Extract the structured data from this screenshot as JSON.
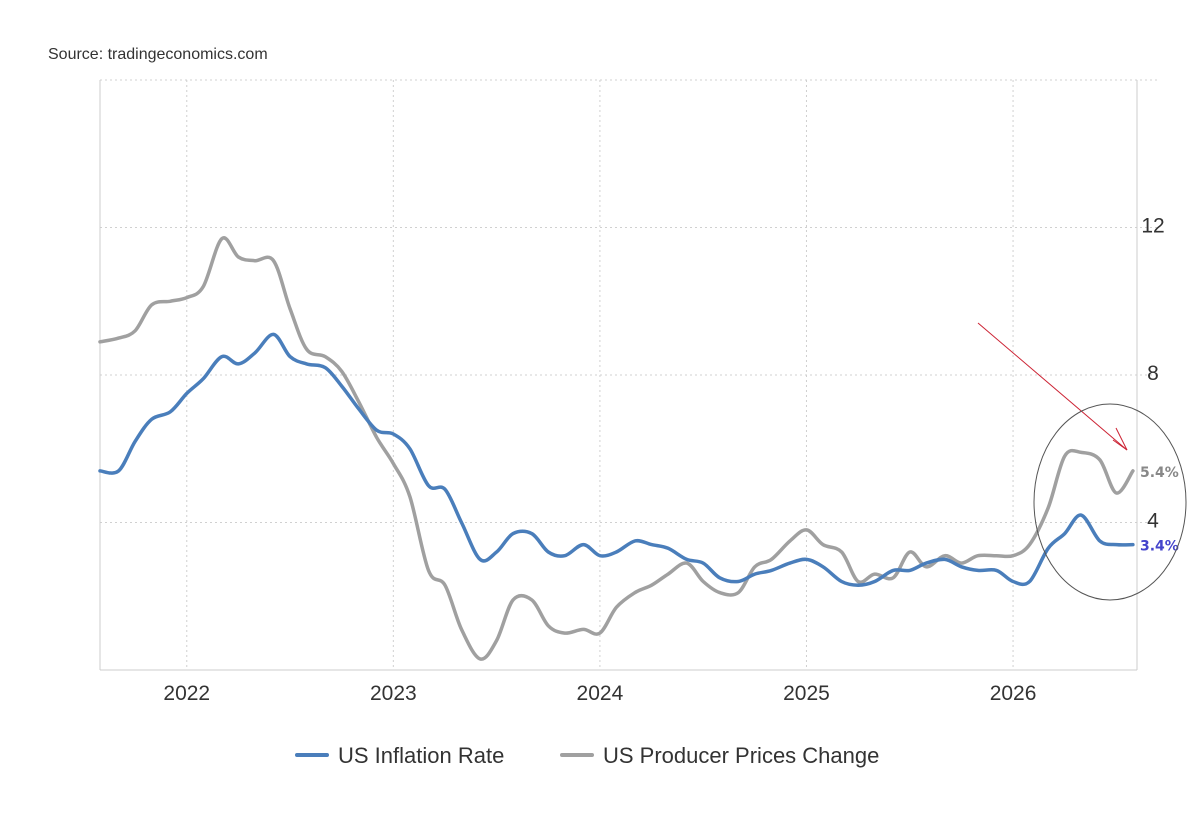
{
  "source": "Source: tradingeconomics.com",
  "colors": {
    "inflation": "#4a7ebb",
    "ppi": "#a0a0a0",
    "inflation_label": "#4444cc",
    "ppi_label": "#888888",
    "annotation": "#cc2233",
    "ellipse": "#555555"
  },
  "chart_data": {
    "type": "line",
    "x_ticks": [
      "2022",
      "2023",
      "2024",
      "2025",
      "2026"
    ],
    "x_tick_values": [
      2022.0,
      2023.0,
      2024.0,
      2025.0,
      2026.0
    ],
    "y_ticks": [
      "4",
      "8",
      "12"
    ],
    "y_tick_values": [
      4,
      8,
      12
    ],
    "xlim": [
      2021.58,
      2026.6
    ],
    "ylim": [
      0,
      16
    ],
    "y_axis_side": "right",
    "grid": true,
    "legend_position": "bottom-center",
    "series": [
      {
        "name": "US Inflation Rate",
        "color": "#4a7ebb",
        "end_label": "3.4%",
        "points": [
          [
            2021.58,
            5.4
          ],
          [
            2021.67,
            5.4
          ],
          [
            2021.75,
            6.2
          ],
          [
            2021.83,
            6.8
          ],
          [
            2021.92,
            7.0
          ],
          [
            2022.0,
            7.5
          ],
          [
            2022.08,
            7.9
          ],
          [
            2022.17,
            8.5
          ],
          [
            2022.25,
            8.3
          ],
          [
            2022.33,
            8.6
          ],
          [
            2022.42,
            9.1
          ],
          [
            2022.5,
            8.5
          ],
          [
            2022.58,
            8.3
          ],
          [
            2022.67,
            8.2
          ],
          [
            2022.75,
            7.7
          ],
          [
            2022.83,
            7.1
          ],
          [
            2022.92,
            6.5
          ],
          [
            2023.0,
            6.4
          ],
          [
            2023.08,
            6.0
          ],
          [
            2023.17,
            5.0
          ],
          [
            2023.25,
            4.9
          ],
          [
            2023.33,
            4.0
          ],
          [
            2023.42,
            3.0
          ],
          [
            2023.5,
            3.2
          ],
          [
            2023.58,
            3.7
          ],
          [
            2023.67,
            3.7
          ],
          [
            2023.75,
            3.2
          ],
          [
            2023.83,
            3.1
          ],
          [
            2023.92,
            3.4
          ],
          [
            2024.0,
            3.1
          ],
          [
            2024.08,
            3.2
          ],
          [
            2024.17,
            3.5
          ],
          [
            2024.25,
            3.4
          ],
          [
            2024.33,
            3.3
          ],
          [
            2024.42,
            3.0
          ],
          [
            2024.5,
            2.9
          ],
          [
            2024.58,
            2.5
          ],
          [
            2024.67,
            2.4
          ],
          [
            2024.75,
            2.6
          ],
          [
            2024.83,
            2.7
          ],
          [
            2024.92,
            2.9
          ],
          [
            2025.0,
            3.0
          ],
          [
            2025.08,
            2.8
          ],
          [
            2025.17,
            2.4
          ],
          [
            2025.25,
            2.3
          ],
          [
            2025.33,
            2.4
          ],
          [
            2025.42,
            2.7
          ],
          [
            2025.5,
            2.7
          ],
          [
            2025.58,
            2.9
          ],
          [
            2025.67,
            3.0
          ],
          [
            2025.75,
            2.8
          ],
          [
            2025.83,
            2.7
          ],
          [
            2025.92,
            2.7
          ],
          [
            2026.0,
            2.4
          ],
          [
            2026.08,
            2.4
          ],
          [
            2026.17,
            3.3
          ],
          [
            2026.25,
            3.7
          ],
          [
            2026.33,
            4.2
          ],
          [
            2026.42,
            3.5
          ],
          [
            2026.5,
            3.4
          ],
          [
            2026.58,
            3.4
          ]
        ]
      },
      {
        "name": "US Producer Prices Change",
        "color": "#a0a0a0",
        "end_label": "5.4%",
        "points": [
          [
            2021.58,
            8.9
          ],
          [
            2021.67,
            9.0
          ],
          [
            2021.75,
            9.2
          ],
          [
            2021.83,
            9.9
          ],
          [
            2021.92,
            10.0
          ],
          [
            2022.0,
            10.1
          ],
          [
            2022.08,
            10.4
          ],
          [
            2022.17,
            11.7
          ],
          [
            2022.25,
            11.2
          ],
          [
            2022.33,
            11.1
          ],
          [
            2022.42,
            11.1
          ],
          [
            2022.5,
            9.8
          ],
          [
            2022.58,
            8.7
          ],
          [
            2022.67,
            8.5
          ],
          [
            2022.75,
            8.1
          ],
          [
            2022.83,
            7.3
          ],
          [
            2022.92,
            6.3
          ],
          [
            2023.0,
            5.6
          ],
          [
            2023.08,
            4.7
          ],
          [
            2023.17,
            2.7
          ],
          [
            2023.25,
            2.3
          ],
          [
            2023.33,
            1.1
          ],
          [
            2023.42,
            0.3
          ],
          [
            2023.5,
            0.8
          ],
          [
            2023.58,
            1.9
          ],
          [
            2023.67,
            1.9
          ],
          [
            2023.75,
            1.2
          ],
          [
            2023.83,
            1.0
          ],
          [
            2023.92,
            1.1
          ],
          [
            2024.0,
            1.0
          ],
          [
            2024.08,
            1.7
          ],
          [
            2024.17,
            2.1
          ],
          [
            2024.25,
            2.3
          ],
          [
            2024.33,
            2.6
          ],
          [
            2024.42,
            2.9
          ],
          [
            2024.5,
            2.4
          ],
          [
            2024.58,
            2.1
          ],
          [
            2024.67,
            2.1
          ],
          [
            2024.75,
            2.8
          ],
          [
            2024.83,
            3.0
          ],
          [
            2024.92,
            3.5
          ],
          [
            2025.0,
            3.8
          ],
          [
            2025.08,
            3.4
          ],
          [
            2025.17,
            3.2
          ],
          [
            2025.25,
            2.4
          ],
          [
            2025.33,
            2.6
          ],
          [
            2025.42,
            2.5
          ],
          [
            2025.5,
            3.2
          ],
          [
            2025.58,
            2.8
          ],
          [
            2025.67,
            3.1
          ],
          [
            2025.75,
            2.9
          ],
          [
            2025.83,
            3.1
          ],
          [
            2025.92,
            3.1
          ],
          [
            2026.0,
            3.1
          ],
          [
            2026.08,
            3.4
          ],
          [
            2026.17,
            4.4
          ],
          [
            2026.25,
            5.8
          ],
          [
            2026.33,
            5.9
          ],
          [
            2026.42,
            5.7
          ],
          [
            2026.5,
            4.8
          ],
          [
            2026.58,
            5.4
          ]
        ]
      }
    ]
  }
}
